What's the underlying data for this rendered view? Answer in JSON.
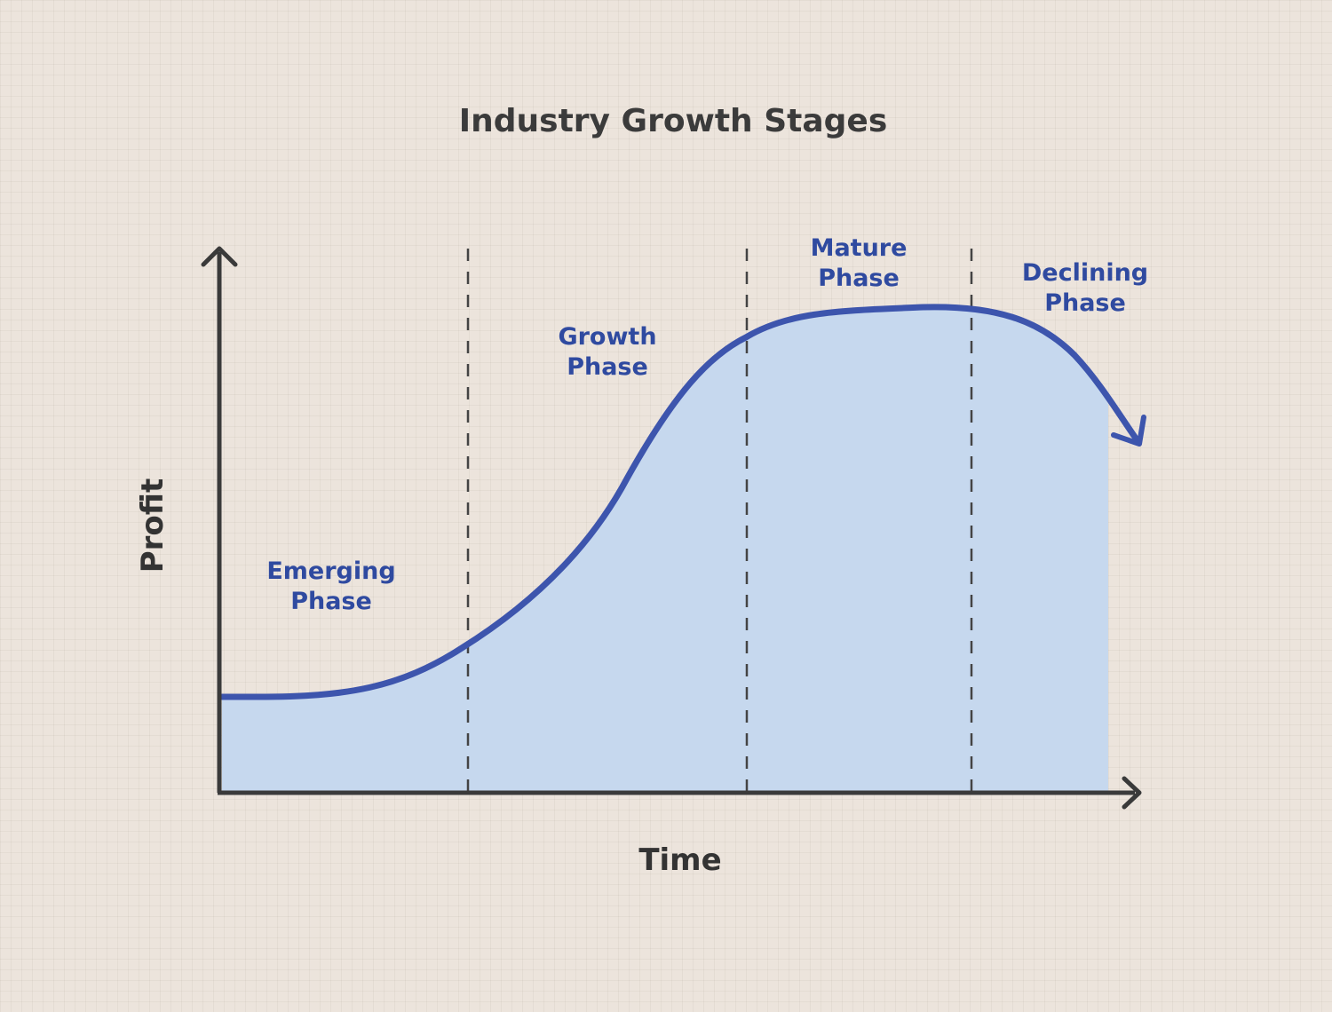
{
  "title": "Industry Growth Stages",
  "axes": {
    "x_label": "Time",
    "y_label": "Profit"
  },
  "phases": [
    {
      "line1": "Emerging",
      "line2": "Phase"
    },
    {
      "line1": "Growth",
      "line2": "Phase"
    },
    {
      "line1": "Mature",
      "line2": "Phase"
    },
    {
      "line1": "Declining",
      "line2": "Phase"
    }
  ],
  "colors": {
    "curve": "#3d55ad",
    "area": "#c6d8ee",
    "axis": "#3a3a3a",
    "phase_text": "#2f4aa0",
    "divider": "#444444"
  }
}
